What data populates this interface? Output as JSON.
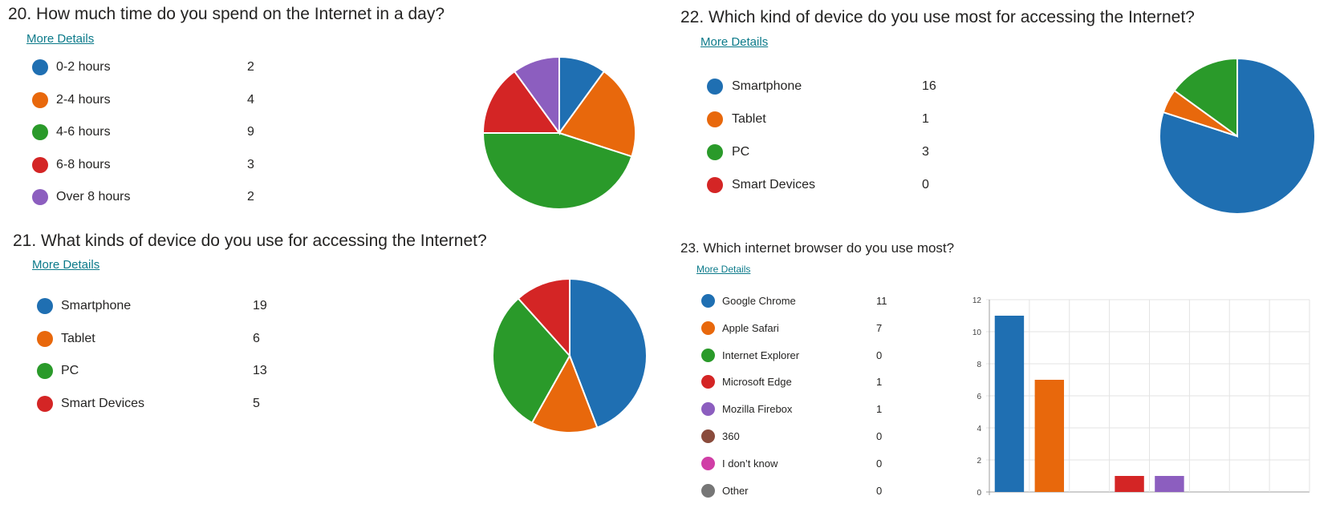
{
  "questions": [
    {
      "id": "q20",
      "title": "20.  How much time do you spend on the Internet in a day?",
      "more_details": "More Details",
      "chart_data": {
        "type": "pie",
        "categories": [
          "0-2 hours",
          "2-4 hours",
          "4-6 hours",
          "6-8 hours",
          "Over 8 hours"
        ],
        "values": [
          2,
          4,
          9,
          3,
          2
        ],
        "colors": [
          "#1f6fb2",
          "#e8680c",
          "#2a9a2a",
          "#d42525",
          "#8c5ebf"
        ]
      }
    },
    {
      "id": "q21",
      "title": "21.  What kinds of device do you use for accessing the Internet?",
      "more_details": "More Details",
      "chart_data": {
        "type": "pie",
        "categories": [
          "Smartphone",
          "Tablet",
          "PC",
          "Smart Devices"
        ],
        "values": [
          19,
          6,
          13,
          5
        ],
        "colors": [
          "#1f6fb2",
          "#e8680c",
          "#2a9a2a",
          "#d42525"
        ]
      }
    },
    {
      "id": "q22",
      "title": "22.  Which kind of device do you use most for accessing the Internet?",
      "more_details": "More Details",
      "chart_data": {
        "type": "pie",
        "categories": [
          "Smartphone",
          "Tablet",
          "PC",
          "Smart Devices"
        ],
        "values": [
          16,
          1,
          3,
          0
        ],
        "colors": [
          "#1f6fb2",
          "#e8680c",
          "#2a9a2a",
          "#d42525"
        ]
      }
    },
    {
      "id": "q23",
      "title": "23.  Which internet browser do you use most?",
      "more_details": "More Details",
      "chart_data": {
        "type": "bar",
        "categories": [
          "Google Chrome",
          "Apple Safari",
          "Internet Explorer",
          "Microsoft Edge",
          "Mozilla Firebox",
          "360",
          "I don’t know",
          "Other"
        ],
        "values": [
          11,
          7,
          0,
          1,
          1,
          0,
          0,
          0
        ],
        "colors": [
          "#1f6fb2",
          "#e8680c",
          "#2a9a2a",
          "#d42525",
          "#8c5ebf",
          "#8a4b3c",
          "#d03ea6",
          "#767676"
        ],
        "ylim": [
          0,
          12
        ],
        "yticks": [
          "0",
          "2",
          "4",
          "6",
          "8",
          "10",
          "12"
        ],
        "grid": true
      }
    }
  ]
}
